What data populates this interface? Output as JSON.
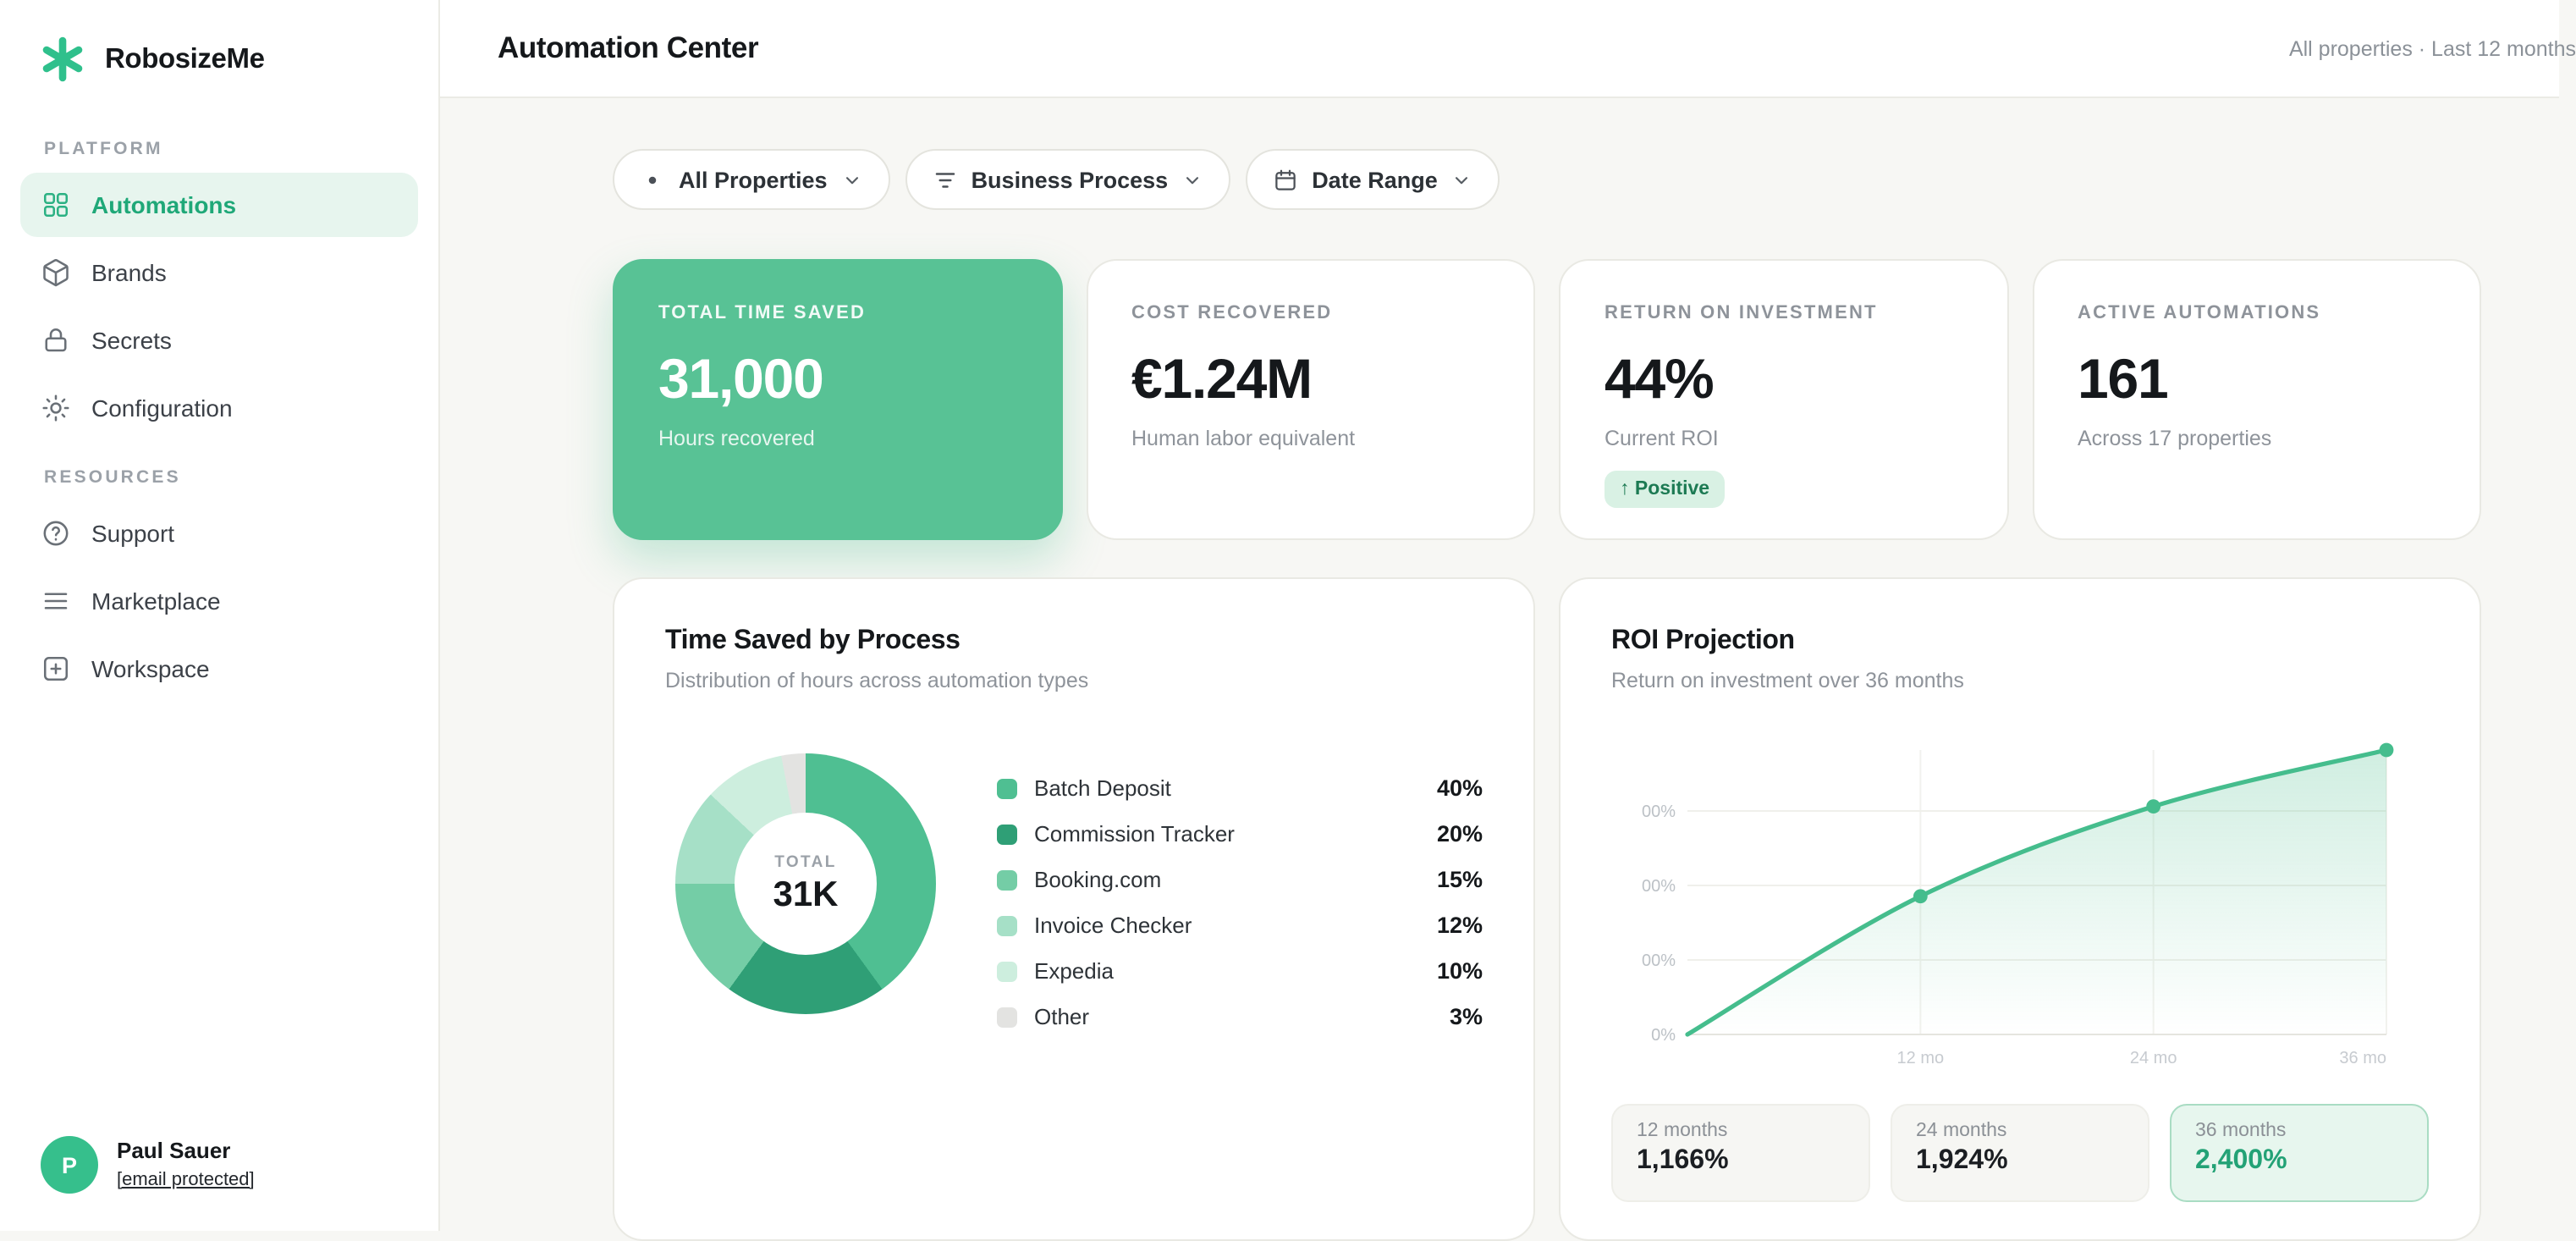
{
  "sidebar": {
    "brand": "RobosizeMe",
    "sections": [
      {
        "label": "PLATFORM",
        "items": [
          {
            "label": "Automations",
            "icon": "grid-icon",
            "active": true
          },
          {
            "label": "Brands",
            "icon": "package-icon",
            "active": false
          },
          {
            "label": "Secrets",
            "icon": "lock-icon",
            "active": false
          },
          {
            "label": "Configuration",
            "icon": "sun-icon",
            "active": false
          }
        ]
      },
      {
        "label": "RESOURCES",
        "items": [
          {
            "label": "Support",
            "icon": "help-circle-icon",
            "active": false
          },
          {
            "label": "Marketplace",
            "icon": "list-icon",
            "active": false
          },
          {
            "label": "Workspace",
            "icon": "plus-square-icon",
            "active": false
          }
        ]
      }
    ],
    "user": {
      "initial": "P",
      "name": "Paul Sauer",
      "email": "[email protected]"
    }
  },
  "header": {
    "title": "Automation Center",
    "context": "All properties · Last 12 months"
  },
  "filters": [
    {
      "label": "All Properties",
      "icon": "dot-icon"
    },
    {
      "label": "Business Process",
      "icon": "filter-icon"
    },
    {
      "label": "Date Range",
      "icon": "calendar-icon"
    }
  ],
  "kpis": [
    {
      "label": "TOTAL TIME SAVED",
      "value": "31,000",
      "sub": "Hours recovered"
    },
    {
      "label": "COST RECOVERED",
      "value": "€1.24M",
      "sub": "Human labor equivalent"
    },
    {
      "label": "RETURN ON INVESTMENT",
      "value": "44%",
      "sub": "Current ROI",
      "badge": "↑ Positive"
    },
    {
      "label": "ACTIVE AUTOMATIONS",
      "value": "161",
      "sub": "Across 17 properties"
    }
  ],
  "chart_data": [
    {
      "type": "pie",
      "title": "Time Saved by Process",
      "subtitle": "Distribution of hours across automation types",
      "center_label": "TOTAL",
      "center_value": "31K",
      "items": [
        {
          "label": "Batch Deposit",
          "pct": 40,
          "pct_label": "40%",
          "color": "#4fbf92"
        },
        {
          "label": "Commission Tracker",
          "pct": 20,
          "pct_label": "20%",
          "color": "#2f9f76"
        },
        {
          "label": "Booking.com",
          "pct": 15,
          "pct_label": "15%",
          "color": "#74cda6"
        },
        {
          "label": "Invoice Checker",
          "pct": 12,
          "pct_label": "12%",
          "color": "#a6e0c7"
        },
        {
          "label": "Expedia",
          "pct": 10,
          "pct_label": "10%",
          "color": "#cdeede"
        },
        {
          "label": "Other",
          "pct": 3,
          "pct_label": "3%",
          "color": "#e3e3e1"
        }
      ]
    },
    {
      "type": "line",
      "title": "ROI Projection",
      "subtitle": "Return on investment over 36 months",
      "line_color": "#45bd8d",
      "y_ticks": [
        "00%",
        "00%",
        "00%",
        "0%"
      ],
      "x_ticks": [
        "12 mo",
        "24 mo",
        "36 mo"
      ],
      "ylim": [
        0,
        2400
      ],
      "xlim_months": [
        0,
        36
      ],
      "points": [
        {
          "month": 0,
          "roi": 0
        },
        {
          "month": 12,
          "roi": 1166
        },
        {
          "month": 24,
          "roi": 1924
        },
        {
          "month": 36,
          "roi": 2400
        }
      ],
      "milestones": [
        {
          "label": "12 months",
          "value": "1,166%",
          "highlight": false
        },
        {
          "label": "24 months",
          "value": "1,924%",
          "highlight": false
        },
        {
          "label": "36 months",
          "value": "2,400%",
          "highlight": true
        }
      ]
    }
  ]
}
